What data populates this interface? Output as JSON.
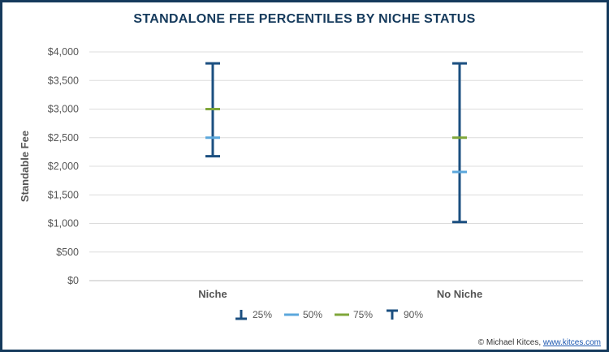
{
  "chart_data": {
    "type": "errorbar",
    "title": "STANDALONE FEE PERCENTILES BY NICHE STATUS",
    "ylabel": "Standable Fee",
    "xlabel": "",
    "categories": [
      "Niche",
      "No Niche"
    ],
    "ylim": [
      0,
      4000
    ],
    "yticks": [
      "$0",
      "$500",
      "$1,000",
      "$1,500",
      "$2,000",
      "$2,500",
      "$3,000",
      "$3,500",
      "$4,000"
    ],
    "ytick_values": [
      0,
      500,
      1000,
      1500,
      2000,
      2500,
      3000,
      3500,
      4000
    ],
    "grid": true,
    "legend_position": "bottom",
    "series": [
      {
        "name": "25%",
        "values": [
          2175,
          1025
        ],
        "color": "#1b4f80"
      },
      {
        "name": "50%",
        "values": [
          2500,
          1900
        ],
        "color": "#5ba7dc"
      },
      {
        "name": "75%",
        "values": [
          3000,
          2500
        ],
        "color": "#7fa63a"
      },
      {
        "name": "90%",
        "values": [
          3800,
          3800
        ],
        "color": "#1b4f80"
      }
    ]
  },
  "credit": {
    "prefix": "© Michael Kitces, ",
    "link": "www.kitces.com"
  }
}
